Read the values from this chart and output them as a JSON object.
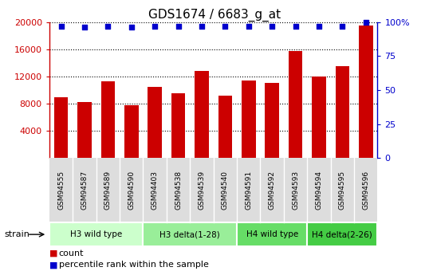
{
  "title": "GDS1674 / 6683_g_at",
  "samples": [
    "GSM94555",
    "GSM94587",
    "GSM94589",
    "GSM94590",
    "GSM94403",
    "GSM94538",
    "GSM94539",
    "GSM94540",
    "GSM94591",
    "GSM94592",
    "GSM94593",
    "GSM94594",
    "GSM94595",
    "GSM94596"
  ],
  "counts": [
    9000,
    8200,
    11300,
    7800,
    10500,
    9500,
    12800,
    9200,
    11400,
    11000,
    15700,
    12000,
    13500,
    19500
  ],
  "percentiles": [
    97,
    96,
    97,
    96,
    97,
    97,
    97,
    97,
    97,
    97,
    97,
    97,
    97,
    100
  ],
  "bar_color": "#cc0000",
  "dot_color": "#0000cc",
  "ylim_left": [
    0,
    20000
  ],
  "ylim_right": [
    0,
    100
  ],
  "yticks_left": [
    4000,
    8000,
    12000,
    16000,
    20000
  ],
  "yticks_right": [
    0,
    25,
    50,
    75,
    100
  ],
  "groups": [
    {
      "label": "H3 wild type",
      "start": 0,
      "end": 4,
      "color": "#ccffcc"
    },
    {
      "label": "H3 delta(1-28)",
      "start": 4,
      "end": 8,
      "color": "#99ee99"
    },
    {
      "label": "H4 wild type",
      "start": 8,
      "end": 11,
      "color": "#66dd66"
    },
    {
      "label": "H4 delta(2-26)",
      "start": 11,
      "end": 14,
      "color": "#44cc44"
    }
  ],
  "strain_label": "strain",
  "legend_count_label": "count",
  "legend_percentile_label": "percentile rank within the sample",
  "background_color": "#ffffff",
  "left_axis_color": "#cc0000",
  "right_axis_color": "#0000cc",
  "tick_bg_color": "#dddddd",
  "tick_sep_color": "#aaaaaa"
}
